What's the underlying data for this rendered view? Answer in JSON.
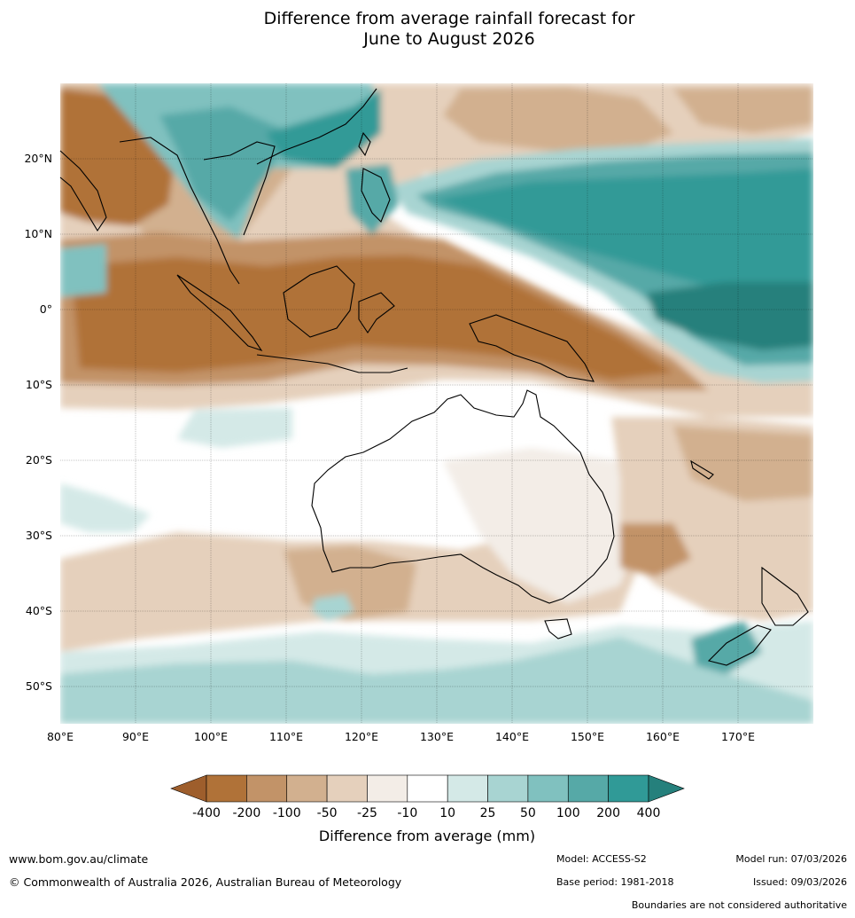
{
  "title": {
    "line1": "Difference from average rainfall forecast for",
    "line2": "June to August 2026"
  },
  "map": {
    "lat_labels": [
      "20°N",
      "10°N",
      "0°",
      "10°S",
      "20°S",
      "30°S",
      "40°S",
      "50°S"
    ],
    "lon_labels": [
      "80°E",
      "90°E",
      "100°E",
      "110°E",
      "120°E",
      "130°E",
      "140°E",
      "150°E",
      "160°E",
      "170°E"
    ]
  },
  "colorbar": {
    "title": "Difference from average (mm)",
    "labels": [
      "-400",
      "-200",
      "-100",
      "-50",
      "-25",
      "-10",
      "10",
      "25",
      "50",
      "100",
      "200",
      "400"
    ],
    "colors": [
      "#b07238",
      "#c29368",
      "#d2b08f",
      "#e5d0bc",
      "#f3ede7",
      "#ffffff",
      "#d4e9e7",
      "#a8d4d2",
      "#80c1bf",
      "#56a9a7",
      "#309a97"
    ],
    "extend_low_color": "#9e5e2c",
    "extend_high_color": "#25807c"
  },
  "footer": {
    "url": "www.bom.gov.au/climate",
    "copyright": "© Commonwealth of Australia 2026, Australian Bureau of Meteorology",
    "model": "Model: ACCESS-S2",
    "base_period": "Base period: 1981-2018",
    "model_run": "Model run: 07/03/2026",
    "issued": "Issued: 09/03/2026",
    "disclaimer": "Boundaries are not considered authoritative"
  }
}
